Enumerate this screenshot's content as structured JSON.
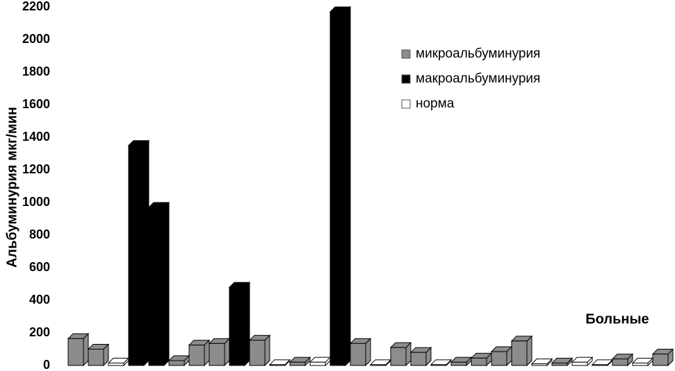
{
  "chart_data": {
    "type": "bar3d",
    "y_label": "Альбуминурия мкг/мин",
    "x_label": "Больные",
    "categories": [
      null,
      null,
      null,
      null,
      null,
      null,
      null,
      null,
      null,
      null,
      null,
      null,
      null,
      null,
      null,
      null,
      null,
      null,
      null,
      null,
      null,
      null,
      null,
      null,
      null,
      null,
      null,
      null,
      null,
      null
    ],
    "series": [
      {
        "name": "микроальбуминурия",
        "color": "#8c8c8c",
        "values": [
          165,
          100,
          null,
          null,
          null,
          30,
          125,
          135,
          null,
          155,
          null,
          20,
          null,
          null,
          135,
          null,
          110,
          80,
          null,
          20,
          45,
          85,
          150,
          null,
          15,
          null,
          null,
          40,
          null,
          70
        ]
      },
      {
        "name": "макроальбуминурия",
        "color": "#000000",
        "values": [
          null,
          null,
          null,
          1350,
          970,
          null,
          null,
          null,
          480,
          null,
          null,
          null,
          null,
          2170,
          null,
          null,
          null,
          null,
          null,
          null,
          null,
          null,
          null,
          null,
          null,
          null,
          null,
          null,
          null,
          null
        ]
      },
      {
        "name": "норма",
        "color": "#ffffff",
        "values": [
          null,
          null,
          15,
          null,
          null,
          null,
          null,
          null,
          null,
          null,
          5,
          null,
          20,
          null,
          null,
          5,
          null,
          null,
          5,
          null,
          null,
          null,
          null,
          10,
          null,
          20,
          5,
          null,
          15,
          null
        ]
      }
    ],
    "ylim": [
      0,
      2200
    ],
    "yticks": [
      0,
      200,
      400,
      600,
      800,
      1000,
      1200,
      1400,
      1600,
      1800,
      2000,
      2200
    ],
    "legend": "upper-right"
  }
}
